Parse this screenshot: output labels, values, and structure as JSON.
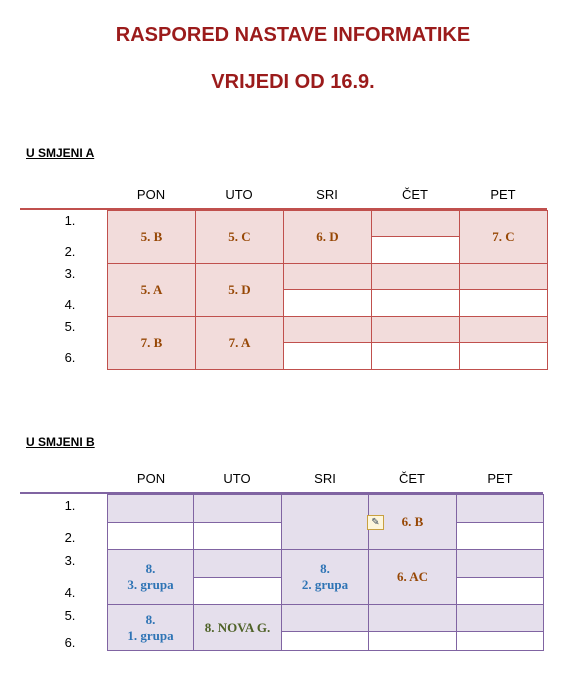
{
  "title": "RASPORED NASTAVE INFORMATIKE",
  "subtitle": "VRIJEDI OD 16.9.",
  "sections": [
    {
      "heading": "U SMJENI A",
      "days": [
        "PON",
        "UTO",
        "SRI",
        "ČET",
        "PET"
      ],
      "periods": [
        "1.",
        "2.",
        "3.",
        "4.",
        "5.",
        "6."
      ],
      "cells": [
        "5. B",
        "5. C",
        "6. D",
        "7. C",
        "5. A",
        "5. D",
        "7. B",
        "7. A"
      ]
    },
    {
      "heading": "U SMJENI B",
      "days": [
        "PON",
        "UTO",
        "SRI",
        "ČET",
        "PET"
      ],
      "periods": [
        "1.",
        "2.",
        "3.",
        "4.",
        "5.",
        "6."
      ],
      "cells": [
        "6. B",
        [
          "8.",
          "3. grupa"
        ],
        [
          "8.",
          "2. grupa"
        ],
        "6. AC",
        [
          "8.",
          "1. grupa"
        ],
        "8. NOVA G."
      ]
    }
  ]
}
